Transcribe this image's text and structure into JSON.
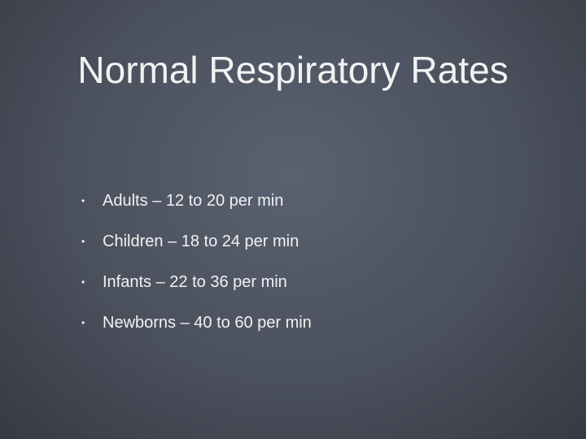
{
  "slide": {
    "title": "Normal Respiratory Rates",
    "bullets": [
      "Adults – 12 to 20 per min",
      "Children – 18 to 24 per min",
      "Infants – 22 to 36 per min",
      "Newborns – 40 to 60 per min"
    ]
  }
}
